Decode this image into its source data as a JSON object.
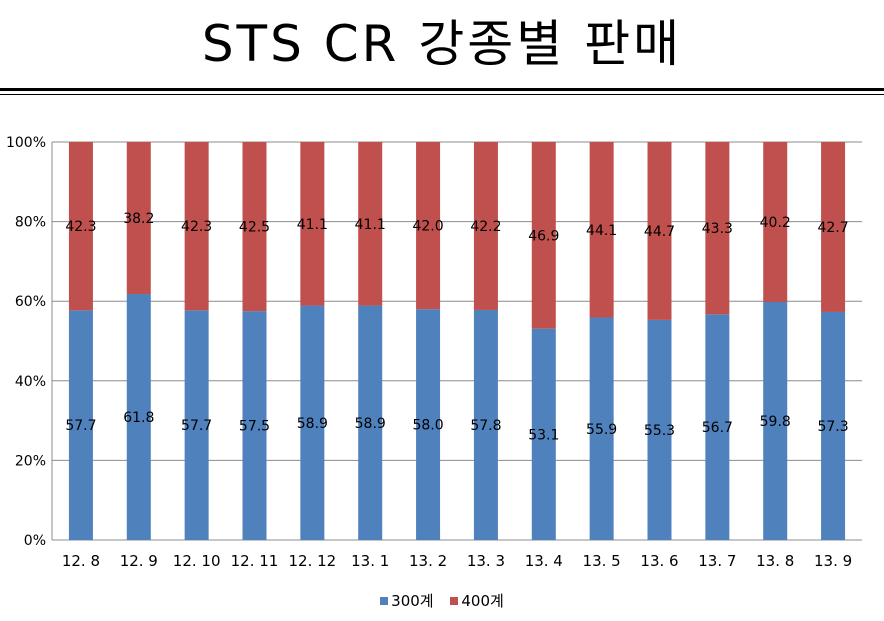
{
  "title": "STS CR 강종별 판매",
  "colors": {
    "series_300": "#4F81BD",
    "series_400": "#C0504D",
    "grid": "#8c8c8c"
  },
  "chart_data": {
    "type": "bar",
    "stacked": true,
    "percent": true,
    "categories": [
      "12. 8",
      "12. 9",
      "12. 10",
      "12. 11",
      "12. 12",
      "13. 1",
      "13. 2",
      "13. 3",
      "13. 4",
      "13. 5",
      "13. 6",
      "13. 7",
      "13. 8",
      "13. 9"
    ],
    "series": [
      {
        "name": "300계",
        "values": [
          57.7,
          61.8,
          57.7,
          57.5,
          58.9,
          58.9,
          58.0,
          57.8,
          53.1,
          55.9,
          55.3,
          56.7,
          59.8,
          57.3
        ],
        "labels": [
          "57.7",
          "61.8",
          "57.7",
          "57.5",
          "58.9",
          "58.9",
          "58.0",
          "57.8",
          "53.1",
          "55.9",
          "55.3",
          "56.7",
          "59.8",
          "57.3"
        ]
      },
      {
        "name": "400계",
        "values": [
          42.3,
          38.2,
          42.3,
          42.5,
          41.1,
          41.1,
          42.0,
          42.2,
          46.9,
          44.1,
          44.7,
          43.3,
          40.2,
          42.7
        ],
        "labels": [
          "42.3",
          "38.2",
          "42.3",
          "42.5",
          "41.1",
          "41.1",
          "42.0",
          "42.2",
          "46.9",
          "44.1",
          "44.7",
          "43.3",
          "40.2",
          "42.7"
        ]
      }
    ],
    "yticks": [
      "0%",
      "20%",
      "40%",
      "60%",
      "80%",
      "100%"
    ],
    "ylim": [
      0,
      100
    ],
    "grid": true,
    "legend": "bottom"
  },
  "legend": {
    "item1": "300계",
    "item2": "400계"
  }
}
